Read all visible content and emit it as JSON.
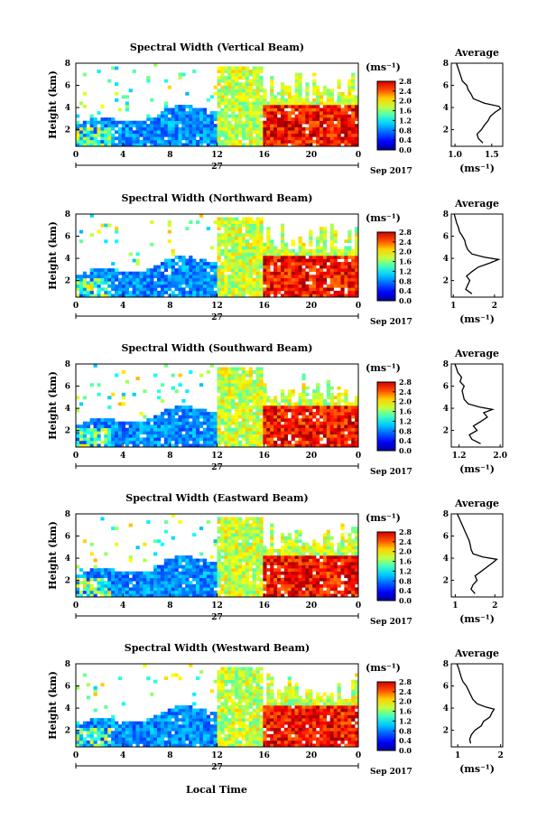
{
  "figure": {
    "x_axis_title": "Local Time",
    "date_label": "Sep 2017",
    "day_label": "27",
    "x_ticks": [
      "0",
      "4",
      "8",
      "12",
      "16",
      "20",
      "0"
    ],
    "y_axis_title": "Height (km)",
    "y_ticks": [
      "2",
      "4",
      "6",
      "8"
    ],
    "colorbar_unit": "(ms⁻¹)",
    "colorbar_ticks": [
      "0.0",
      "0.4",
      "0.8",
      "1.2",
      "1.6",
      "2.0",
      "2.4",
      "2.8"
    ],
    "average_title": "Average",
    "average_unit": "(ms⁻¹)"
  },
  "chart_data": [
    {
      "type": "heatmap",
      "title": "Spectral Width (Vertical Beam)",
      "xlabel": "",
      "ylabel": "Height (km)",
      "xlim_hours": [
        0,
        24
      ],
      "ylim_km": [
        0.5,
        8
      ],
      "colorbar_range": [
        0.0,
        2.8
      ],
      "average_profile": {
        "xlabel": "(ms⁻¹)",
        "x_ticks": [
          "1.0",
          "1.5"
        ],
        "xlim": [
          0.95,
          1.65
        ],
        "heights_km": [
          0.8,
          1.2,
          1.6,
          2.0,
          2.4,
          2.8,
          3.2,
          3.6,
          3.9,
          4.1,
          4.4,
          4.8,
          5.2,
          5.6,
          6.0,
          6.4,
          6.8,
          7.2,
          7.6,
          8.0
        ],
        "values": [
          1.38,
          1.32,
          1.3,
          1.36,
          1.4,
          1.45,
          1.48,
          1.55,
          1.62,
          1.6,
          1.4,
          1.25,
          1.22,
          1.18,
          1.16,
          1.1,
          1.08,
          1.06,
          1.04,
          1.02
        ]
      }
    },
    {
      "type": "heatmap",
      "title": "Spectral Width (Northward Beam)",
      "xlabel": "",
      "ylabel": "Height (km)",
      "xlim_hours": [
        0,
        24
      ],
      "ylim_km": [
        0.5,
        8
      ],
      "colorbar_range": [
        0.0,
        2.8
      ],
      "average_profile": {
        "xlabel": "(ms⁻¹)",
        "x_ticks": [
          "1",
          "2"
        ],
        "xlim": [
          0.95,
          2.2
        ],
        "heights_km": [
          0.8,
          1.2,
          1.6,
          2.0,
          2.4,
          2.8,
          3.2,
          3.6,
          3.9,
          4.1,
          4.4,
          4.8,
          5.2,
          5.6,
          6.0,
          6.4,
          6.8,
          7.2,
          7.6,
          8.0
        ],
        "values": [
          1.45,
          1.3,
          1.35,
          1.4,
          1.32,
          1.45,
          1.6,
          1.9,
          2.1,
          1.75,
          1.45,
          1.35,
          1.3,
          1.28,
          1.22,
          1.15,
          1.12,
          1.08,
          1.05,
          1.02
        ]
      }
    },
    {
      "type": "heatmap",
      "title": "Spectral Width (Southward Beam)",
      "xlabel": "",
      "ylabel": "Height (km)",
      "xlim_hours": [
        0,
        24
      ],
      "ylim_km": [
        0.5,
        8
      ],
      "colorbar_range": [
        0.0,
        2.8
      ],
      "average_profile": {
        "xlabel": "(ms⁻¹)",
        "x_ticks": [
          "1.2",
          "2.0"
        ],
        "xlim": [
          1.05,
          2.05
        ],
        "heights_km": [
          0.8,
          1.2,
          1.6,
          2.0,
          2.4,
          2.8,
          3.2,
          3.6,
          3.9,
          4.1,
          4.4,
          4.8,
          5.2,
          5.6,
          6.0,
          6.4,
          6.8,
          7.2,
          7.6,
          8.0
        ],
        "values": [
          1.62,
          1.45,
          1.4,
          1.55,
          1.48,
          1.62,
          1.75,
          1.68,
          1.85,
          1.6,
          1.38,
          1.3,
          1.28,
          1.26,
          1.3,
          1.22,
          1.25,
          1.18,
          1.15,
          1.12
        ]
      }
    },
    {
      "type": "heatmap",
      "title": "Spectral Width (Eastward Beam)",
      "xlabel": "",
      "ylabel": "Height (km)",
      "xlim_hours": [
        0,
        24
      ],
      "ylim_km": [
        0.5,
        8
      ],
      "colorbar_range": [
        0.0,
        2.8
      ],
      "average_profile": {
        "xlabel": "(ms⁻¹)",
        "x_ticks": [
          "1",
          "2"
        ],
        "xlim": [
          0.9,
          2.2
        ],
        "heights_km": [
          0.8,
          1.2,
          1.6,
          2.0,
          2.4,
          2.8,
          3.2,
          3.6,
          3.9,
          4.1,
          4.4,
          4.8,
          5.2,
          5.6,
          6.0,
          6.4,
          6.8,
          7.2,
          7.6,
          8.0
        ],
        "values": [
          1.5,
          1.4,
          1.45,
          1.55,
          1.5,
          1.65,
          1.8,
          1.95,
          2.05,
          1.7,
          1.45,
          1.4,
          1.38,
          1.35,
          1.3,
          1.25,
          1.2,
          1.15,
          1.1,
          1.05
        ]
      }
    },
    {
      "type": "heatmap",
      "title": "Spectral Width (Westward Beam)",
      "xlabel": "",
      "ylabel": "Height (km)",
      "xlim_hours": [
        0,
        24
      ],
      "ylim_km": [
        0.5,
        8
      ],
      "colorbar_range": [
        0.0,
        2.8
      ],
      "average_profile": {
        "xlabel": "(ms⁻¹)",
        "x_ticks": [
          "1",
          "2"
        ],
        "xlim": [
          0.85,
          2.05
        ],
        "heights_km": [
          0.8,
          1.2,
          1.6,
          2.0,
          2.4,
          2.8,
          3.2,
          3.6,
          3.9,
          4.1,
          4.4,
          4.8,
          5.2,
          5.6,
          6.0,
          6.4,
          6.8,
          7.2,
          7.6,
          8.0
        ],
        "values": [
          1.3,
          1.28,
          1.32,
          1.4,
          1.55,
          1.6,
          1.75,
          1.8,
          1.85,
          1.65,
          1.45,
          1.35,
          1.3,
          1.25,
          1.2,
          1.12,
          1.08,
          1.05,
          1.02,
          0.98
        ]
      }
    }
  ]
}
